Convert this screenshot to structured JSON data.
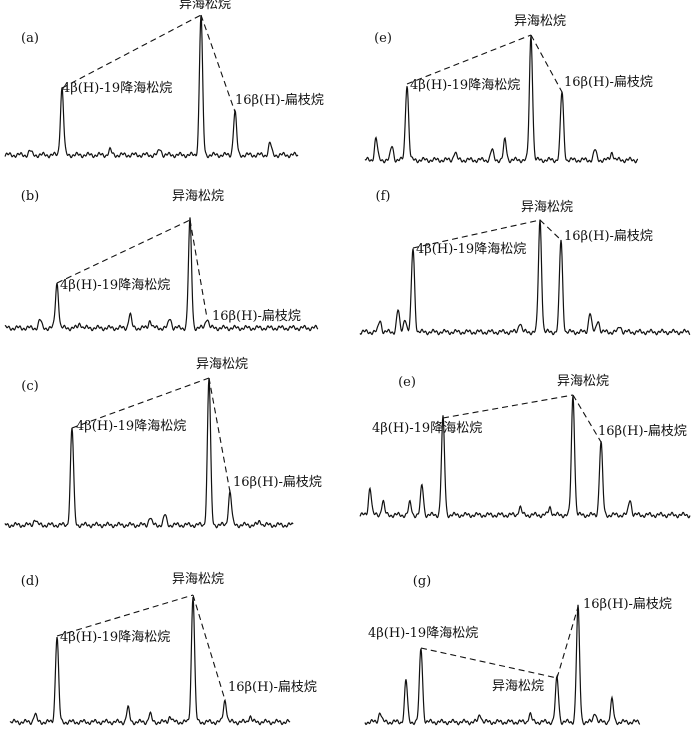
{
  "panels": [
    {
      "label": "(a)",
      "labels": [
        "异海松烷",
        "4β(H)-19降海松烷",
        "16β(H)-扁枝烷"
      ]
    },
    {
      "label": "(b)",
      "labels": [
        "异海松烷",
        "4β(H)-19降海松烷",
        "16β(H)-扁枝烷"
      ]
    },
    {
      "label": "(c)",
      "labels": [
        "异海松烷",
        "4β(H)-19降海松烷",
        "16β(H)-扁枝烷"
      ]
    },
    {
      "label": "(d)",
      "labels": [
        "异海松烷",
        "4β(H)-19降海松烷",
        "16β(H)-扁枝烷"
      ]
    },
    {
      "label": "(e)",
      "labels": [
        "异海松烷",
        "4β(H)-19降海松烷",
        "16β(H)-扁枝烷"
      ]
    },
    {
      "label": "(f)",
      "labels": [
        "异海松烷",
        "4β(H)-19降海松烷",
        "16β(H)-扁枝烷"
      ]
    },
    {
      "label": "(e)",
      "labels": [
        "异海松烷",
        "4β(H)-19降海松烷",
        "16β(H)-扁枝烷"
      ]
    },
    {
      "label": "(g)",
      "labels": [
        "异海松烷",
        "4β(H)-19降海松烷",
        "16β(H)-扁枝烷"
      ]
    }
  ]
}
